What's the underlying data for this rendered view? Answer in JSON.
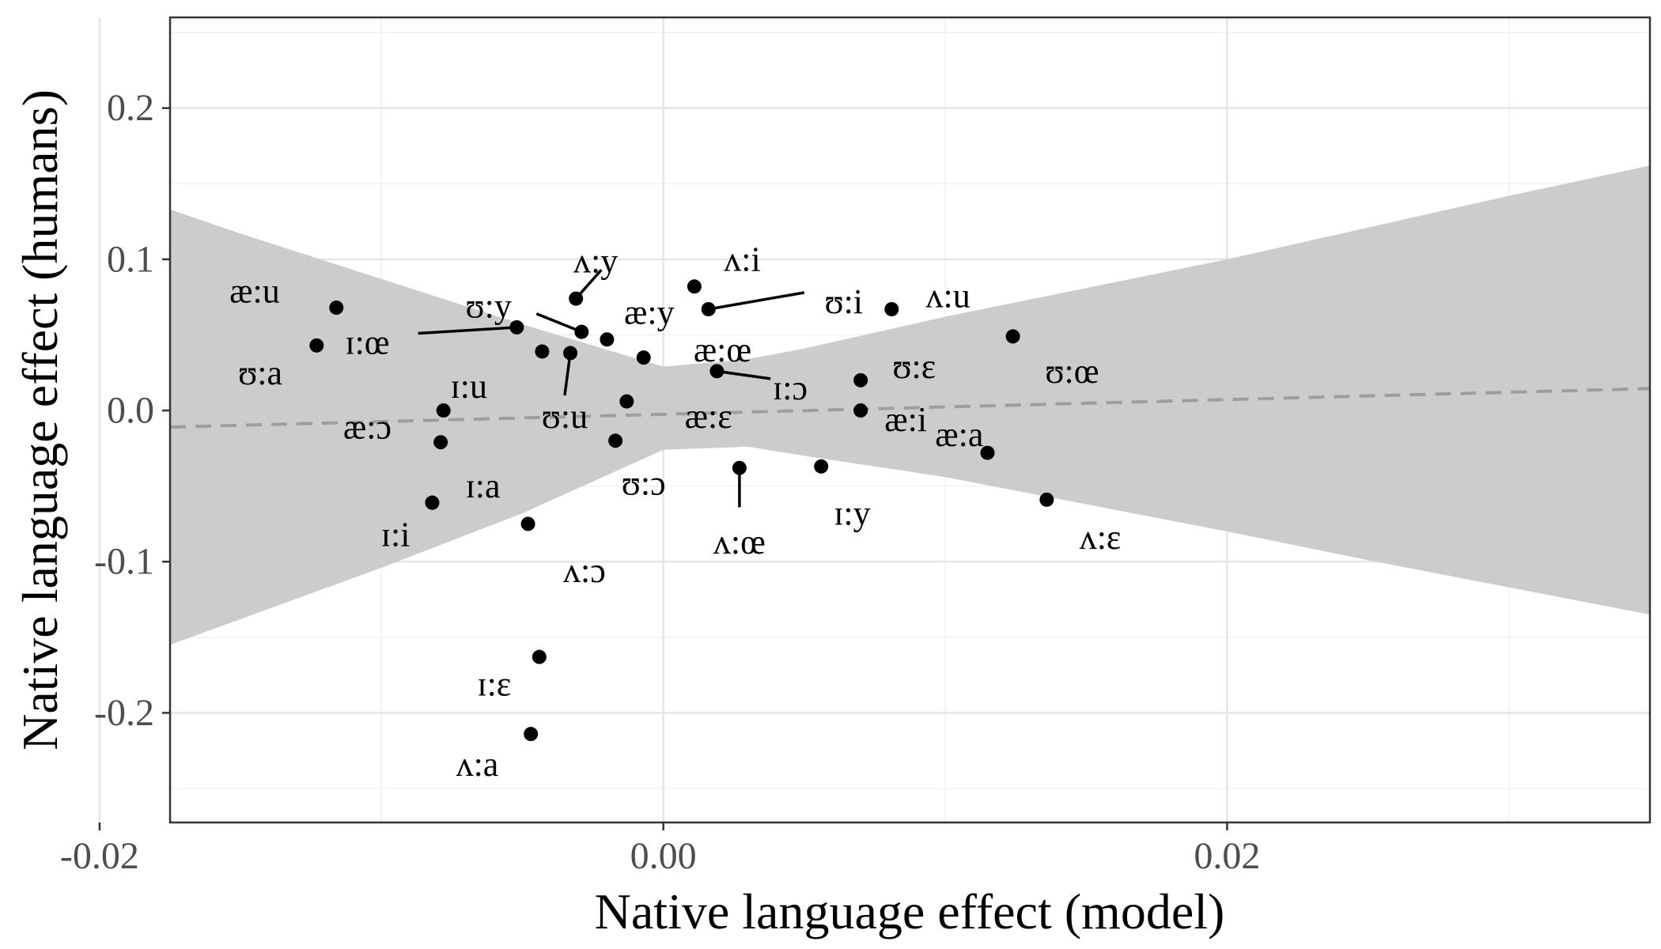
{
  "chart_data": {
    "type": "scatter",
    "xlabel": "Native language effect (model)",
    "ylabel": "Native language effect (humans)",
    "xlim": [
      -0.0175,
      0.035
    ],
    "ylim": [
      -0.2725,
      0.26
    ],
    "x_ticks": [
      -0.02,
      0.0,
      0.02
    ],
    "x_tick_labels": [
      "-0.02",
      "0.00",
      "0.02"
    ],
    "y_ticks": [
      0.2,
      0.1,
      0.0,
      -0.1,
      -0.2
    ],
    "y_tick_labels": [
      "0.2",
      "0.1",
      "0.0",
      "-0.1",
      "-0.2"
    ],
    "grid": true,
    "regression_line": {
      "x": [
        -0.0175,
        0.035
      ],
      "y": [
        -0.011,
        0.0145
      ],
      "style": "dashed",
      "color": "#9e9e9e"
    },
    "confidence_band": {
      "color": "#cccccc",
      "x": [
        -0.0175,
        -0.015,
        -0.01,
        -0.005,
        0.0,
        0.003,
        0.005,
        0.01,
        0.015,
        0.02,
        0.025,
        0.03,
        0.035
      ],
      "upper": [
        0.133,
        0.117,
        0.087,
        0.057,
        0.029,
        0.034,
        0.041,
        0.062,
        0.081,
        0.1,
        0.121,
        0.142,
        0.162
      ],
      "lower": [
        -0.155,
        -0.138,
        -0.104,
        -0.068,
        -0.026,
        -0.024,
        -0.03,
        -0.044,
        -0.062,
        -0.08,
        -0.099,
        -0.117,
        -0.135
      ]
    },
    "points": [
      {
        "label": "æ:u",
        "x": -0.0116,
        "y": 0.068
      },
      {
        "label": "ʊ:a",
        "x": -0.0123,
        "y": 0.043
      },
      {
        "label": "ɪ:œ",
        "x": -0.0052,
        "y": 0.055
      },
      {
        "label": "ʊ:y",
        "x": -0.0029,
        "y": 0.052
      },
      {
        "label": "ʌ:y",
        "x": -0.0031,
        "y": 0.074
      },
      {
        "label": "æ:y",
        "x": -0.002,
        "y": 0.047
      },
      {
        "label": "ʌ:i",
        "x": 0.0011,
        "y": 0.082
      },
      {
        "label": "ʊ:i",
        "x": 0.0016,
        "y": 0.067
      },
      {
        "label": "ʌ:u",
        "x": 0.0081,
        "y": 0.067
      },
      {
        "label": "ʊ:œ",
        "x": 0.0124,
        "y": 0.049
      },
      {
        "label": "æ:œ",
        "x": -0.0007,
        "y": 0.035
      },
      {
        "label": "ʊ:u",
        "x": -0.0033,
        "y": 0.038
      },
      {
        "label": "ɪ:ɔ",
        "x": 0.0019,
        "y": 0.026
      },
      {
        "label": "ʊ:ɛ",
        "x": 0.007,
        "y": 0.02
      },
      {
        "label": "ɪ:u",
        "x": -0.0078,
        "y": 0.0
      },
      {
        "label": "æ:ɛ",
        "x": -0.0013,
        "y": 0.006
      },
      {
        "label": "æ:i",
        "x": 0.007,
        "y": 0.0
      },
      {
        "label": "æ:ɔ",
        "x": -0.0079,
        "y": -0.021
      },
      {
        "label": "ʊ:ɔ",
        "x": -0.0017,
        "y": -0.02
      },
      {
        "label": "æ:a",
        "x": 0.0115,
        "y": -0.028
      },
      {
        "label": "ɪ:a",
        "x": -0.0082,
        "y": -0.061
      },
      {
        "label": "ʌ:œ",
        "x": 0.0027,
        "y": -0.038
      },
      {
        "label": "ɪ:y",
        "x": 0.0056,
        "y": -0.037
      },
      {
        "label": "ʌ:ɛ",
        "x": 0.0136,
        "y": -0.059
      },
      {
        "label": "ɪ:i",
        "x": -0.0082,
        "y": -0.061
      },
      {
        "label": "ʌ:ɔ",
        "x": -0.0048,
        "y": -0.075
      },
      {
        "label": "ɪ:ɛ",
        "x": -0.0044,
        "y": -0.163
      },
      {
        "label": "ʌ:a",
        "x": -0.0047,
        "y": -0.214
      },
      {
        "label": "",
        "x": -0.0043,
        "y": 0.039
      }
    ],
    "point_labels": [
      {
        "text": "æ:u",
        "x": -0.0145,
        "y": 0.079
      },
      {
        "text": "ʊ:a",
        "x": -0.0143,
        "y": 0.025
      },
      {
        "text": "ɪ:œ",
        "x": -0.0105,
        "y": 0.045
      },
      {
        "text": "ʊ:y",
        "x": -0.0062,
        "y": 0.069
      },
      {
        "text": "ʌ:y",
        "x": -0.0024,
        "y": 0.099
      },
      {
        "text": "æ:y",
        "x": -0.0005,
        "y": 0.065
      },
      {
        "text": "ʌ:i",
        "x": 0.0028,
        "y": 0.1
      },
      {
        "text": "ʊ:i",
        "x": 0.0064,
        "y": 0.072
      },
      {
        "text": "ʌ:u",
        "x": 0.0101,
        "y": 0.076
      },
      {
        "text": "ʊ:œ",
        "x": 0.0145,
        "y": 0.026
      },
      {
        "text": "æ:œ",
        "x": 0.0021,
        "y": 0.04
      },
      {
        "text": "ʊ:u",
        "x": -0.0035,
        "y": -0.004
      },
      {
        "text": "ɪ:ɔ",
        "x": 0.0045,
        "y": 0.015
      },
      {
        "text": "ʊ:ɛ",
        "x": 0.0089,
        "y": 0.029
      },
      {
        "text": "ɪ:u",
        "x": -0.0069,
        "y": 0.016
      },
      {
        "text": "æ:ɛ",
        "x": 0.0016,
        "y": -0.004
      },
      {
        "text": "æ:i",
        "x": 0.0086,
        "y": -0.006
      },
      {
        "text": "æ:ɔ",
        "x": -0.0105,
        "y": -0.011
      },
      {
        "text": "ʊ:ɔ",
        "x": -0.0007,
        "y": -0.048
      },
      {
        "text": "æ:a",
        "x": 0.0105,
        "y": -0.016
      },
      {
        "text": "ɪ:a",
        "x": -0.0064,
        "y": -0.05
      },
      {
        "text": "ʌ:œ",
        "x": 0.0027,
        "y": -0.087
      },
      {
        "text": "ɪ:y",
        "x": 0.0067,
        "y": -0.068
      },
      {
        "text": "ʌ:ɛ",
        "x": 0.0155,
        "y": -0.084
      },
      {
        "text": "ɪ:i",
        "x": -0.0095,
        "y": -0.082
      },
      {
        "text": "ʌ:ɔ",
        "x": -0.0028,
        "y": -0.106
      },
      {
        "text": "ɪ:ɛ",
        "x": -0.006,
        "y": -0.181
      },
      {
        "text": "ʌ:a",
        "x": -0.0066,
        "y": -0.234
      }
    ],
    "leader_lines": [
      {
        "from": [
          -0.0052,
          0.055
        ],
        "to": [
          -0.0087,
          0.051
        ]
      },
      {
        "from": [
          -0.0029,
          0.052
        ],
        "to": [
          -0.0045,
          0.064
        ]
      },
      {
        "from": [
          -0.0031,
          0.074
        ],
        "to": [
          -0.0022,
          0.093
        ]
      },
      {
        "from": [
          0.0016,
          0.067
        ],
        "to": [
          0.005,
          0.078
        ]
      },
      {
        "from": [
          -0.0033,
          0.038
        ],
        "to": [
          -0.0035,
          0.01
        ]
      },
      {
        "from": [
          0.0019,
          0.026
        ],
        "to": [
          0.0038,
          0.021
        ]
      },
      {
        "from": [
          0.0027,
          -0.038
        ],
        "to": [
          0.0027,
          -0.064
        ]
      }
    ]
  }
}
